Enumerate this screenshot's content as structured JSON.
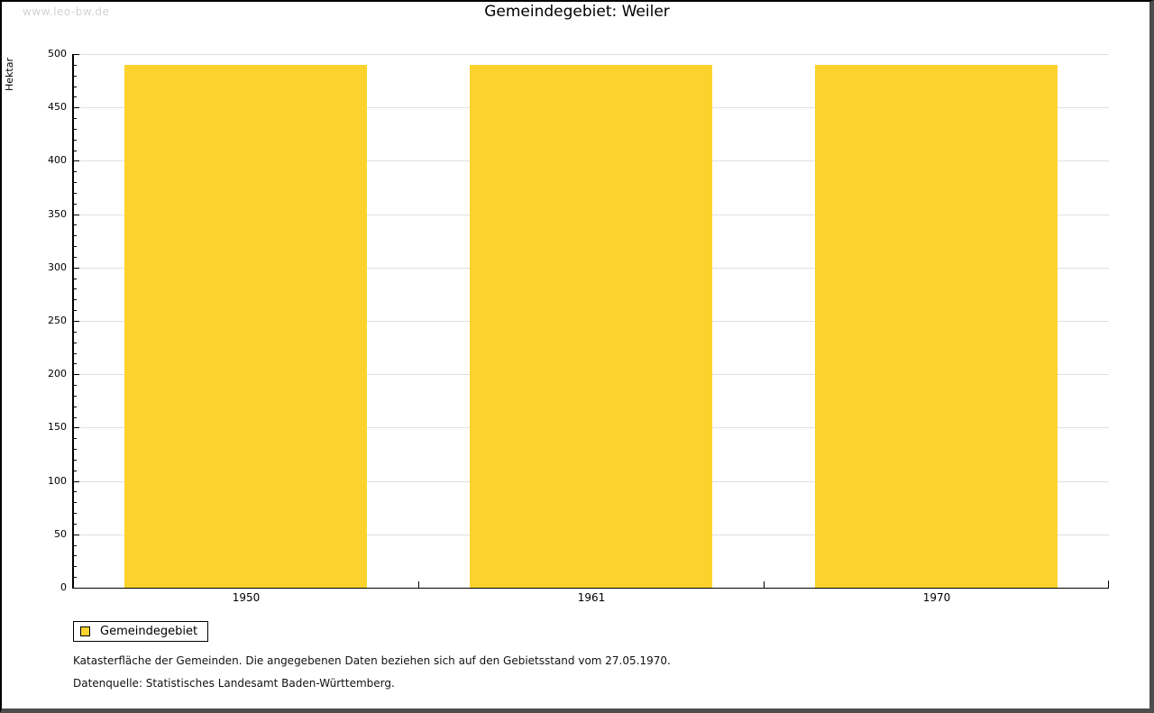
{
  "watermark": "www.leo-bw.de",
  "title": "Gemeindegebiet: Weiler",
  "legend": {
    "label": "Gemeindegebiet"
  },
  "footnotes": {
    "line1": "Katasterfläche der Gemeinden. Die angegebenen Daten beziehen sich auf den Gebietsstand vom 27.05.1970.",
    "line2": "Datenquelle: Statistisches Landesamt Baden-Württemberg."
  },
  "colors": {
    "bar": "#fcd32d",
    "grid": "#e0e0e0",
    "axis": "#000000",
    "watermark": "#d2d2d2",
    "frame_dark": "#000000",
    "frame_gray": "#4d4d4d"
  },
  "chart_data": {
    "type": "bar",
    "title": "Gemeindegebiet: Weiler",
    "categories": [
      "1950",
      "1961",
      "1970"
    ],
    "series": [
      {
        "name": "Gemeindegebiet",
        "values": [
          490,
          490,
          490
        ]
      }
    ],
    "xlabel": "",
    "ylabel": "Hektar",
    "unit": "Hektar",
    "ylim": [
      0,
      500
    ],
    "ytick_step": 50,
    "yminor_step": 10,
    "yticks": [
      "0",
      "50",
      "100",
      "150",
      "200",
      "250",
      "300",
      "350",
      "400",
      "450",
      "500"
    ],
    "grid": true,
    "legend_position": "bottom-left"
  }
}
